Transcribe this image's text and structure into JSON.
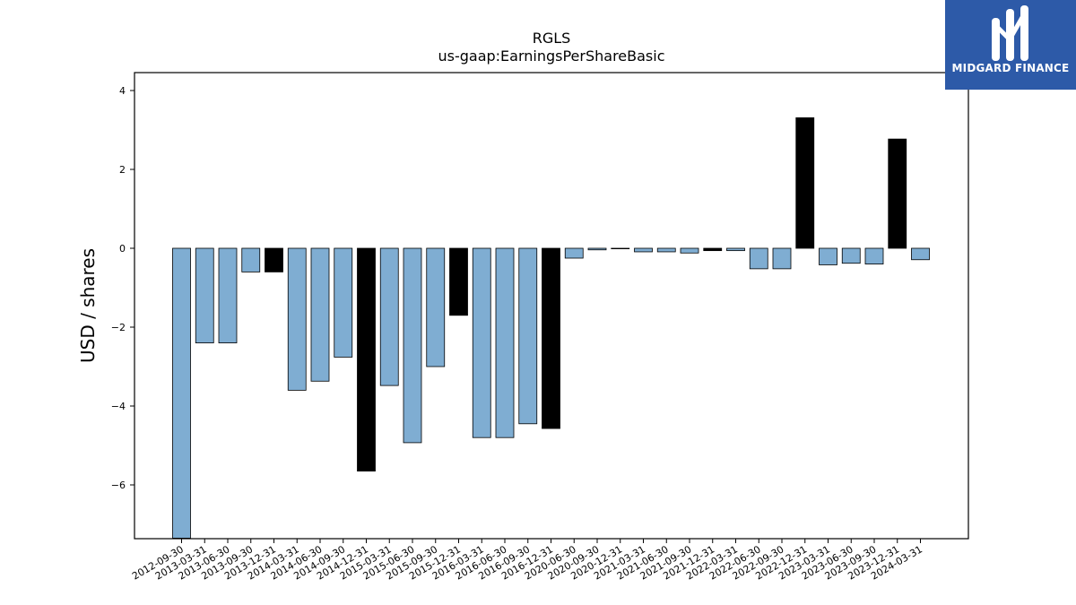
{
  "chart_data": {
    "type": "bar",
    "title": "RGLS",
    "subtitle": "us-gaap:EarningsPerShareBasic",
    "xlabel": "",
    "ylabel": "USD / shares",
    "ylim": [
      -7.3,
      4.4
    ],
    "yticks": [
      4,
      2,
      0,
      -2,
      -4,
      -6
    ],
    "ytick_labels": [
      "4",
      "2",
      "0",
      "−2",
      "−4",
      "−6"
    ],
    "grid": false,
    "categories": [
      "2012-09-30",
      "2013-03-31",
      "2013-06-30",
      "2013-09-30",
      "2013-12-31",
      "2014-03-31",
      "2014-06-30",
      "2014-09-30",
      "2014-12-31",
      "2015-03-31",
      "2015-06-30",
      "2015-09-30",
      "2015-12-31",
      "2016-03-31",
      "2016-06-30",
      "2016-09-30",
      "2016-12-31",
      "2020-06-30",
      "2020-09-30",
      "2020-12-31",
      "2021-03-31",
      "2021-06-30",
      "2021-09-30",
      "2021-12-31",
      "2022-03-31",
      "2022-06-30",
      "2022-09-30",
      "2022-12-31",
      "2023-03-31",
      "2023-06-30",
      "2023-09-30",
      "2023-12-31",
      "2024-03-31"
    ],
    "values": [
      -7.35,
      -2.4,
      -2.4,
      -0.6,
      -0.6,
      -3.6,
      -3.37,
      -2.76,
      -5.65,
      -3.48,
      -4.93,
      -3.0,
      -1.7,
      -4.8,
      -4.8,
      -4.45,
      -4.57,
      -0.25,
      -0.04,
      -0.01,
      -0.09,
      -0.09,
      -0.12,
      -0.06,
      -0.06,
      -0.52,
      -0.52,
      3.31,
      -0.42,
      -0.38,
      -0.4,
      2.77,
      -0.29
    ],
    "annual": [
      false,
      false,
      false,
      false,
      true,
      false,
      false,
      false,
      true,
      false,
      false,
      false,
      true,
      false,
      false,
      false,
      true,
      false,
      false,
      false,
      false,
      false,
      false,
      true,
      false,
      false,
      false,
      true,
      false,
      false,
      false,
      true,
      false
    ],
    "colors": {
      "quarterly": "#7fadd2",
      "annual": "#000000",
      "edge": "#000000"
    }
  },
  "logo": {
    "text": "MIDGARD FINANCE",
    "background": "#2d5aa8"
  }
}
